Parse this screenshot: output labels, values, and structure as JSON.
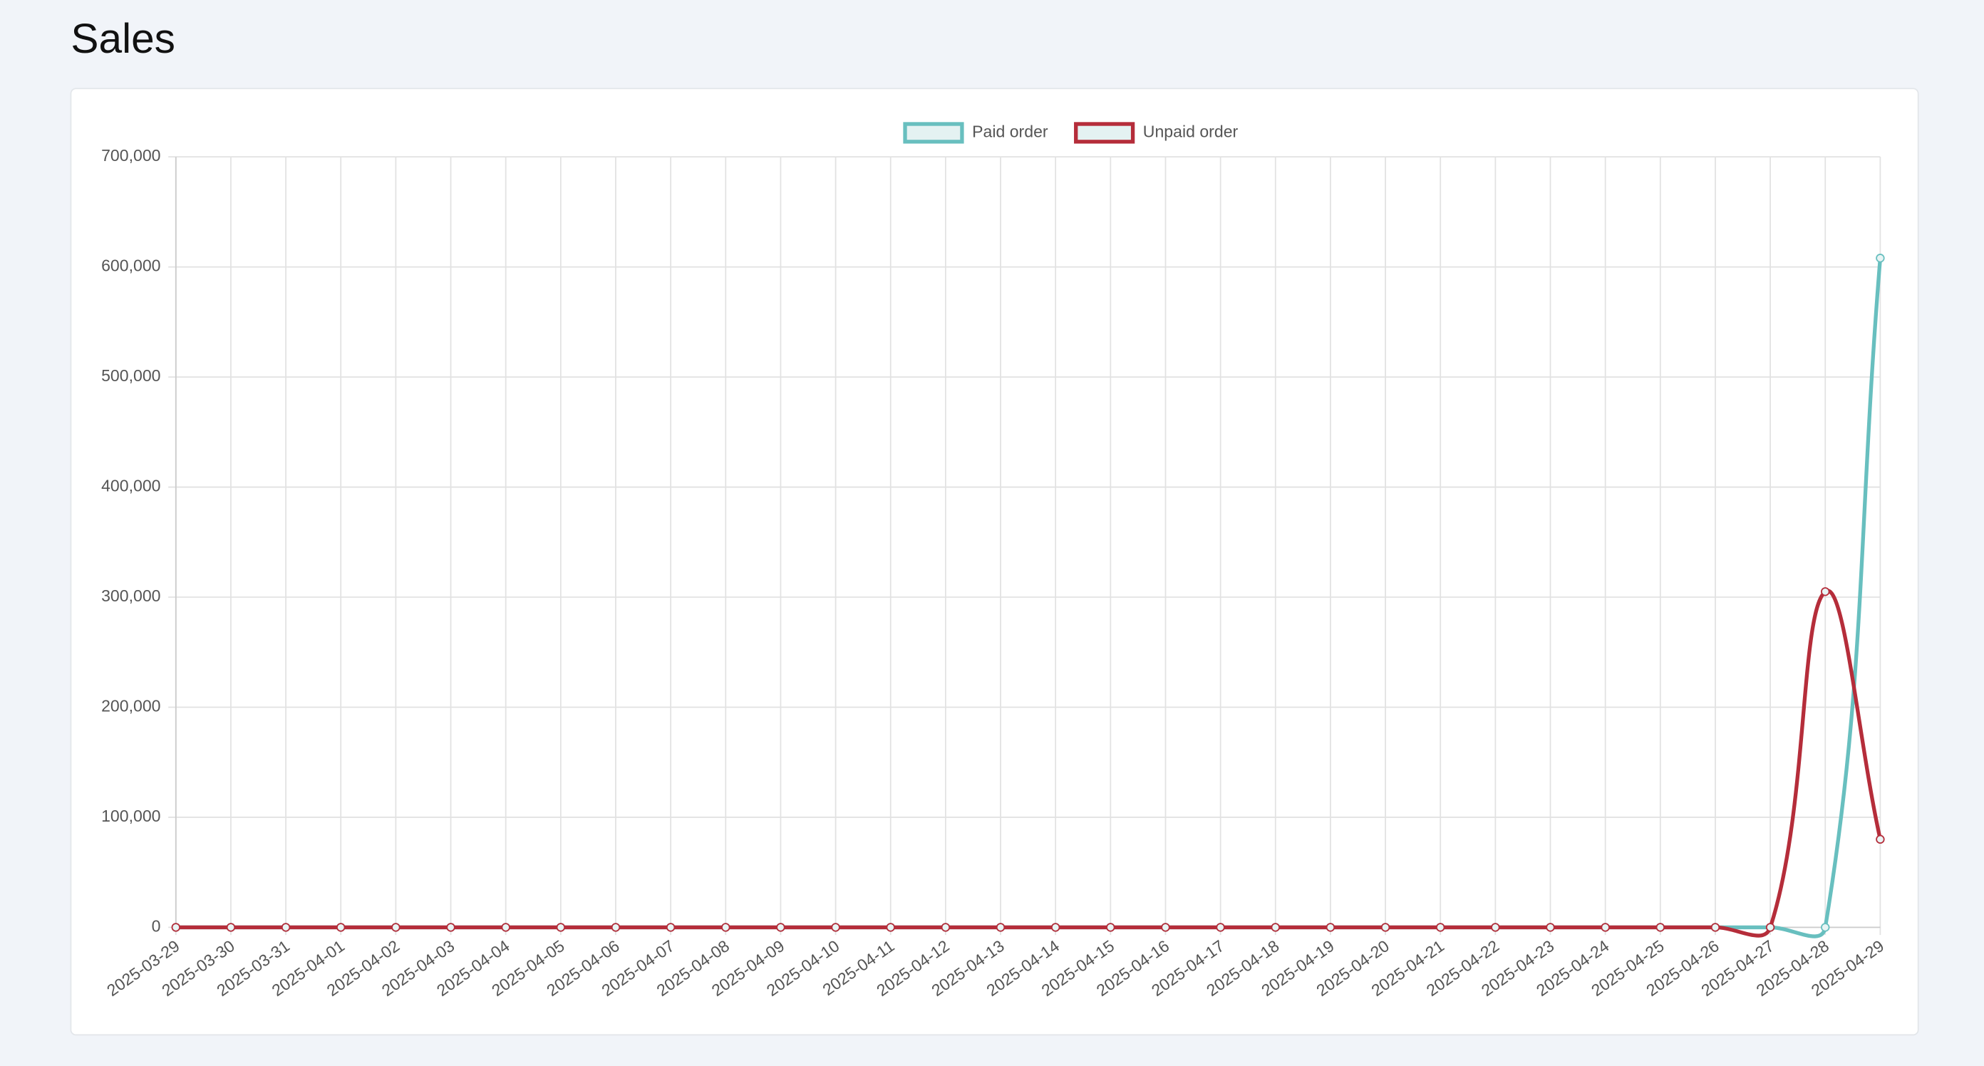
{
  "page_title": "Sales",
  "chart_data": {
    "type": "line",
    "categories": [
      "2025-03-29",
      "2025-03-30",
      "2025-03-31",
      "2025-04-01",
      "2025-04-02",
      "2025-04-03",
      "2025-04-04",
      "2025-04-05",
      "2025-04-06",
      "2025-04-07",
      "2025-04-08",
      "2025-04-09",
      "2025-04-10",
      "2025-04-11",
      "2025-04-12",
      "2025-04-13",
      "2025-04-14",
      "2025-04-15",
      "2025-04-16",
      "2025-04-17",
      "2025-04-18",
      "2025-04-19",
      "2025-04-20",
      "2025-04-21",
      "2025-04-22",
      "2025-04-23",
      "2025-04-24",
      "2025-04-25",
      "2025-04-26",
      "2025-04-27",
      "2025-04-28",
      "2025-04-29"
    ],
    "series": [
      {
        "name": "Paid order",
        "color": "#68bfbf",
        "values": [
          0,
          0,
          0,
          0,
          0,
          0,
          0,
          0,
          0,
          0,
          0,
          0,
          0,
          0,
          0,
          0,
          0,
          0,
          0,
          0,
          0,
          0,
          0,
          0,
          0,
          0,
          0,
          0,
          0,
          0,
          0,
          608000
        ]
      },
      {
        "name": "Unpaid order",
        "color": "#b52d3a",
        "values": [
          0,
          0,
          0,
          0,
          0,
          0,
          0,
          0,
          0,
          0,
          0,
          0,
          0,
          0,
          0,
          0,
          0,
          0,
          0,
          0,
          0,
          0,
          0,
          0,
          0,
          0,
          0,
          0,
          0,
          0,
          305000,
          80000
        ]
      }
    ],
    "ylim": [
      0,
      700000
    ],
    "yticks": [
      0,
      {
        "value": 100000,
        "label": "100,000"
      },
      {
        "value": 200000,
        "label": "200,000"
      },
      {
        "value": 300000,
        "label": "300,000"
      },
      {
        "value": 400000,
        "label": "400,000"
      },
      {
        "value": 500000,
        "label": "500,000"
      },
      {
        "value": 600000,
        "label": "600,000"
      },
      {
        "value": 700000,
        "label": "700,000"
      }
    ],
    "grid": true,
    "legend": "top"
  }
}
